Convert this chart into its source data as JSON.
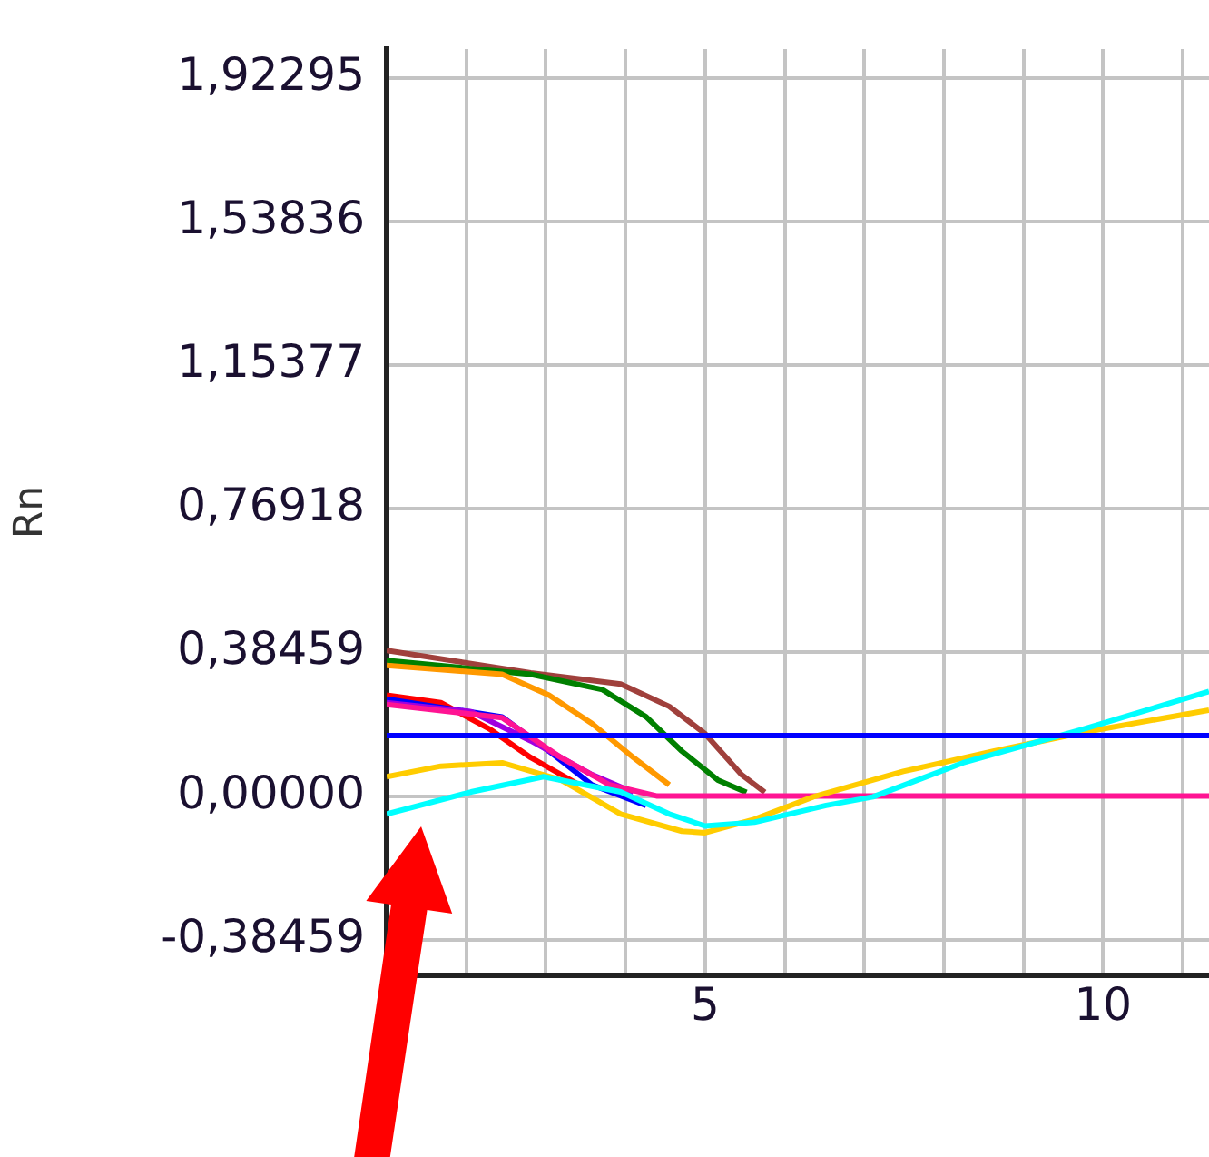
{
  "chart_data": {
    "type": "line",
    "ylabel": "Rn",
    "xlim": [
      1,
      11.33
    ],
    "ylim": [
      -0.48,
      2.0
    ],
    "xticks": [
      {
        "value": 1,
        "label": null
      },
      {
        "value": 2,
        "label": null
      },
      {
        "value": 3,
        "label": null
      },
      {
        "value": 4,
        "label": null
      },
      5,
      {
        "value": 6,
        "label": null
      },
      {
        "value": 7,
        "label": null
      },
      {
        "value": 8,
        "label": null
      },
      {
        "value": 9,
        "label": null
      },
      10,
      {
        "value": 11,
        "label": null
      }
    ],
    "yticks": [
      {
        "value": -0.38459,
        "label": "-0,38459"
      },
      {
        "value": 0,
        "label": "0,00000"
      },
      {
        "value": 0.38459,
        "label": "0,38459"
      },
      {
        "value": 0.76918,
        "label": "0,76918"
      },
      {
        "value": 1.15377,
        "label": "1,15377"
      },
      {
        "value": 1.53836,
        "label": "1,53836"
      },
      {
        "value": 1.92295,
        "label": "1,92295"
      }
    ],
    "grid": true,
    "legend": false,
    "marker": "none",
    "line_style": "solid",
    "ref_lines": [
      {
        "axis": "y",
        "value": 0.162,
        "color": "#0000ff"
      }
    ],
    "series": [
      {
        "color": "#a0403c",
        "x": [
          1,
          2.81,
          3.94,
          4.55,
          5.0,
          5.46,
          5.75
        ],
        "values": [
          0.39,
          0.33,
          0.3,
          0.24,
          0.167,
          0.057,
          0.01
        ]
      },
      {
        "color": "#008000",
        "x": [
          1,
          2.81,
          3.71,
          4.26,
          4.71,
          5.16,
          5.52
        ],
        "values": [
          0.363,
          0.326,
          0.285,
          0.212,
          0.12,
          0.043,
          0.01
        ]
      },
      {
        "color": "#ff9900",
        "x": [
          1,
          2.45,
          3.04,
          3.58,
          4.1,
          4.55
        ],
        "values": [
          0.35,
          0.326,
          0.27,
          0.194,
          0.103,
          0.03
        ]
      },
      {
        "color": "#ff0000",
        "x": [
          1,
          1.68,
          2.29,
          2.81,
          3.42
        ],
        "values": [
          0.27,
          0.25,
          0.18,
          0.103,
          0.03
        ]
      },
      {
        "color": "#0000ff",
        "x": [
          1,
          2.45,
          3.04,
          3.58,
          4.26
        ],
        "values": [
          0.26,
          0.212,
          0.12,
          0.03,
          -0.025
        ]
      },
      {
        "color": "#a000e0",
        "x": [
          1,
          2.06,
          2.81,
          3.58,
          4.1
        ],
        "values": [
          0.25,
          0.226,
          0.148,
          0.057,
          0.01
        ]
      },
      {
        "color": "#ff1493",
        "x": [
          1,
          2.45,
          3.19,
          3.8,
          4.4,
          5,
          6.5,
          8,
          9.5,
          11.33
        ],
        "values": [
          0.245,
          0.21,
          0.103,
          0.03,
          0,
          0,
          0,
          0,
          0,
          0
        ]
      },
      {
        "color": "#ffcc00",
        "x": [
          1,
          1.68,
          2.45,
          3.19,
          3.94,
          4.71,
          5.0,
          5.62,
          6.36,
          7.49,
          8.62,
          9.76,
          11.33
        ],
        "values": [
          0.052,
          0.08,
          0.089,
          0.043,
          -0.048,
          -0.094,
          -0.098,
          -0.062,
          -0.002,
          0.066,
          0.12,
          0.171,
          0.23
        ]
      },
      {
        "color": "#00ffff",
        "x": [
          1,
          2.06,
          2.97,
          3.94,
          4.55,
          5.0,
          5.62,
          6.52,
          7.11,
          8.24,
          9.76,
          11.33
        ],
        "values": [
          -0.048,
          0.011,
          0.052,
          0.011,
          -0.048,
          -0.08,
          -0.07,
          -0.025,
          -0.002,
          0.089,
          0.18,
          0.28
        ]
      }
    ]
  }
}
